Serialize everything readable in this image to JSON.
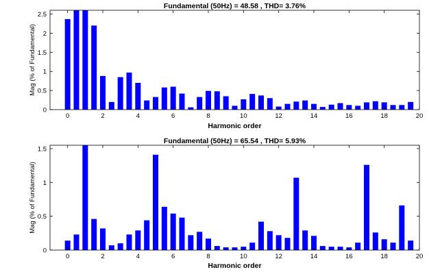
{
  "chart_data": [
    {
      "type": "bar",
      "title": "Fundamental (50Hz) = 48.58 , THD= 3.76%",
      "xlabel": "Harmonic order",
      "ylabel": "Mag (% of Fundamental)",
      "xlim": [
        -1,
        20
      ],
      "ylim": [
        0,
        2.6
      ],
      "xticks": [
        0,
        2,
        4,
        6,
        8,
        10,
        12,
        14,
        16,
        18,
        20
      ],
      "xtick_labels": [
        "0",
        "2",
        "4",
        "6",
        "8",
        "10",
        "12",
        "14",
        "16",
        "18",
        "20"
      ],
      "yticks": [
        0,
        0.5,
        1,
        1.5,
        2,
        2.5
      ],
      "ytick_labels": [
        "0",
        "0.5",
        "1",
        "1.5",
        "2",
        "2.5"
      ],
      "bar_color": "#0000ff",
      "x": [
        0,
        0.5,
        1,
        1.5,
        2,
        2.5,
        3,
        3.5,
        4,
        4.5,
        5,
        5.5,
        6,
        6.5,
        7,
        7.5,
        8,
        8.5,
        9,
        9.5,
        10,
        10.5,
        11,
        11.5,
        12,
        12.5,
        13,
        13.5,
        14,
        14.5,
        15,
        15.5,
        16,
        16.5,
        17,
        17.5,
        18,
        18.5,
        19,
        19.5
      ],
      "values": [
        2.37,
        2.6,
        2.6,
        2.2,
        0.88,
        0.2,
        0.85,
        0.97,
        0.7,
        0.24,
        0.33,
        0.58,
        0.6,
        0.42,
        0.06,
        0.33,
        0.49,
        0.48,
        0.35,
        0.1,
        0.27,
        0.41,
        0.37,
        0.3,
        0.08,
        0.15,
        0.21,
        0.24,
        0.15,
        0.07,
        0.13,
        0.17,
        0.12,
        0.1,
        0.19,
        0.22,
        0.19,
        0.12,
        0.12,
        0.2
      ]
    },
    {
      "type": "bar",
      "title": "Fundamental (50Hz) = 65.54 , THD= 5.93%",
      "xlabel": "Harmonic order",
      "ylabel": "Mag (% of Fundamental)",
      "xlim": [
        -1,
        20
      ],
      "ylim": [
        0,
        1.55
      ],
      "xticks": [
        0,
        2,
        4,
        6,
        8,
        10,
        12,
        14,
        16,
        18,
        20
      ],
      "xtick_labels": [
        "0",
        "2",
        "4",
        "6",
        "8",
        "10",
        "12",
        "14",
        "16",
        "18",
        "20"
      ],
      "yticks": [
        0,
        0.5,
        1,
        1.5
      ],
      "ytick_labels": [
        "0",
        "0.5",
        "1",
        "1.5"
      ],
      "bar_color": "#0000ff",
      "x": [
        0,
        0.5,
        1,
        1.5,
        2,
        2.5,
        3,
        3.5,
        4,
        4.5,
        5,
        5.5,
        6,
        6.5,
        7,
        7.5,
        8,
        8.5,
        9,
        9.5,
        10,
        10.5,
        11,
        11.5,
        12,
        12.5,
        13,
        13.5,
        14,
        14.5,
        15,
        15.5,
        16,
        16.5,
        17,
        17.5,
        18,
        18.5,
        19,
        19.5
      ],
      "values": [
        0.14,
        0.23,
        1.55,
        0.46,
        0.32,
        0.07,
        0.1,
        0.23,
        0.29,
        0.44,
        1.41,
        0.64,
        0.54,
        0.48,
        0.22,
        0.27,
        0.17,
        0.06,
        0.04,
        0.04,
        0.05,
        0.11,
        0.42,
        0.28,
        0.22,
        0.18,
        1.07,
        0.29,
        0.21,
        0.06,
        0.05,
        0.05,
        0.04,
        0.11,
        1.26,
        0.26,
        0.16,
        0.11,
        0.66,
        0.14
      ]
    }
  ]
}
